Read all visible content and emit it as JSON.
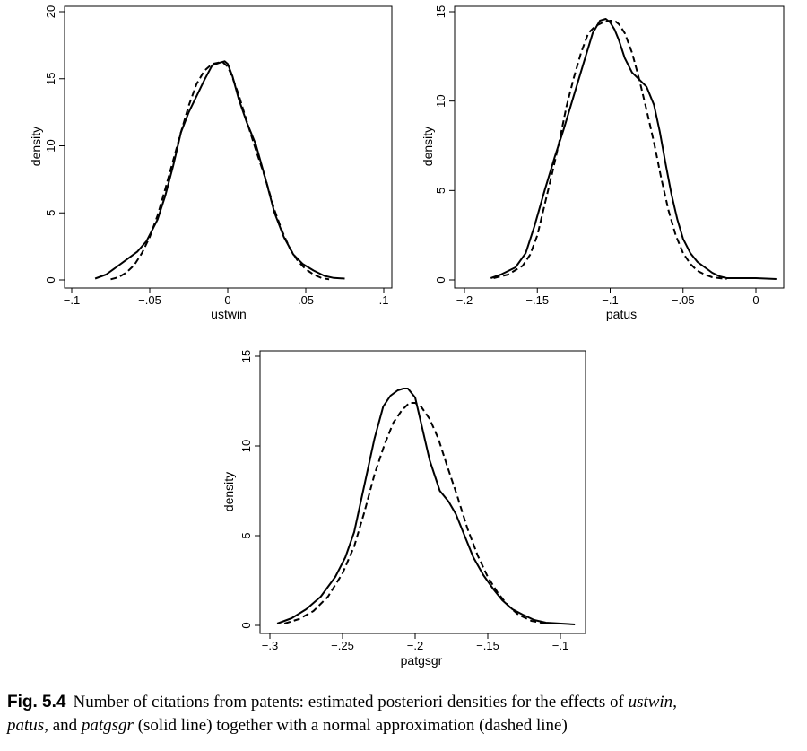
{
  "chart_data": [
    {
      "type": "line",
      "xlabel": "ustwin",
      "ylabel": "density",
      "xlim": [
        -0.1,
        0.1
      ],
      "ylim": [
        0,
        20
      ],
      "xticks": [
        -0.1,
        -0.05,
        0,
        0.05,
        0.1
      ],
      "xtick_labels": [
        "−.1",
        "−.05",
        "0",
        ".05",
        ".1"
      ],
      "yticks": [
        0,
        5,
        10,
        15,
        20
      ],
      "ytick_labels": [
        "0",
        "5",
        "10",
        "15",
        "20"
      ],
      "grid": false,
      "series": [
        {
          "style": "solid",
          "x": [
            -0.085,
            -0.078,
            -0.072,
            -0.065,
            -0.058,
            -0.052,
            -0.045,
            -0.04,
            -0.035,
            -0.03,
            -0.025,
            -0.02,
            -0.015,
            -0.01,
            -0.005,
            -0.002,
            0.0,
            0.003,
            0.007,
            0.012,
            0.018,
            0.024,
            0.03,
            0.036,
            0.042,
            0.048,
            0.055,
            0.062,
            0.068,
            0.075
          ],
          "y": [
            0.1,
            0.4,
            0.9,
            1.5,
            2.1,
            2.9,
            4.5,
            6.3,
            8.5,
            11.0,
            12.5,
            13.7,
            14.9,
            16.0,
            16.2,
            16.3,
            16.1,
            15.2,
            13.5,
            11.8,
            10.1,
            7.6,
            5.0,
            3.2,
            1.9,
            1.2,
            0.7,
            0.3,
            0.15,
            0.1
          ]
        },
        {
          "style": "dashed",
          "x": [
            -0.075,
            -0.07,
            -0.065,
            -0.06,
            -0.055,
            -0.05,
            -0.045,
            -0.04,
            -0.035,
            -0.03,
            -0.025,
            -0.02,
            -0.015,
            -0.01,
            -0.006,
            -0.003,
            0.0,
            0.003,
            0.007,
            0.012,
            0.018,
            0.024,
            0.03,
            0.035,
            0.04,
            0.045,
            0.05,
            0.055,
            0.06,
            0.065
          ],
          "y": [
            0.05,
            0.2,
            0.55,
            1.1,
            2.0,
            3.2,
            4.8,
            6.8,
            8.9,
            11.0,
            13.0,
            14.6,
            15.6,
            16.1,
            16.2,
            16.2,
            15.9,
            15.1,
            13.8,
            11.9,
            9.7,
            7.6,
            5.2,
            3.6,
            2.3,
            1.4,
            0.8,
            0.4,
            0.15,
            0.05
          ]
        }
      ]
    },
    {
      "type": "line",
      "xlabel": "patus",
      "ylabel": "density",
      "xlim": [
        -0.2,
        0.0
      ],
      "ylim": [
        0,
        15
      ],
      "xticks": [
        -0.2,
        -0.15,
        -0.1,
        -0.05,
        0
      ],
      "xtick_labels": [
        "−.2",
        "−.15",
        "−.1",
        "−.05",
        "0"
      ],
      "yticks": [
        0,
        5,
        10,
        15
      ],
      "ytick_labels": [
        "0",
        "5",
        "10",
        "15"
      ],
      "grid": false,
      "series": [
        {
          "style": "solid",
          "x": [
            -0.182,
            -0.175,
            -0.165,
            -0.158,
            -0.152,
            -0.145,
            -0.138,
            -0.132,
            -0.125,
            -0.118,
            -0.112,
            -0.107,
            -0.103,
            -0.1,
            -0.097,
            -0.094,
            -0.09,
            -0.085,
            -0.08,
            -0.075,
            -0.07,
            -0.066,
            -0.062,
            -0.058,
            -0.054,
            -0.05,
            -0.045,
            -0.04,
            -0.035,
            -0.03,
            -0.025,
            -0.02,
            -0.015,
            -0.01,
            -0.005,
            0.0,
            0.014
          ],
          "y": [
            0.1,
            0.3,
            0.7,
            1.5,
            3.0,
            5.0,
            6.9,
            8.4,
            10.3,
            12.2,
            13.8,
            14.5,
            14.6,
            14.4,
            14.0,
            13.4,
            12.4,
            11.6,
            11.2,
            10.8,
            9.8,
            8.3,
            6.5,
            4.8,
            3.4,
            2.3,
            1.5,
            1.0,
            0.7,
            0.4,
            0.2,
            0.1,
            0.1,
            0.1,
            0.1,
            0.1,
            0.05
          ]
        },
        {
          "style": "dashed",
          "x": [
            -0.18,
            -0.17,
            -0.16,
            -0.155,
            -0.15,
            -0.145,
            -0.14,
            -0.135,
            -0.13,
            -0.125,
            -0.12,
            -0.115,
            -0.11,
            -0.105,
            -0.1,
            -0.097,
            -0.094,
            -0.09,
            -0.085,
            -0.08,
            -0.075,
            -0.07,
            -0.065,
            -0.06,
            -0.055,
            -0.05,
            -0.045,
            -0.04,
            -0.035,
            -0.03,
            -0.025,
            -0.02
          ],
          "y": [
            0.1,
            0.3,
            0.8,
            1.4,
            2.5,
            4.2,
            5.9,
            7.7,
            9.7,
            11.3,
            12.7,
            13.8,
            14.2,
            14.4,
            14.5,
            14.5,
            14.3,
            13.8,
            12.7,
            11.2,
            9.5,
            7.7,
            5.7,
            3.9,
            2.5,
            1.5,
            0.9,
            0.5,
            0.3,
            0.15,
            0.1,
            0.05
          ]
        }
      ]
    },
    {
      "type": "line",
      "xlabel": "patgsgr",
      "ylabel": "density",
      "xlim": [
        -0.3,
        -0.1
      ],
      "ylim": [
        0,
        15
      ],
      "xticks": [
        -0.3,
        -0.25,
        -0.2,
        -0.15,
        -0.1
      ],
      "xtick_labels": [
        "−.3",
        "−.25",
        "−.2",
        "−.15",
        "−.1"
      ],
      "yticks": [
        0,
        5,
        10,
        15
      ],
      "ytick_labels": [
        "0",
        "5",
        "10",
        "15"
      ],
      "grid": false,
      "series": [
        {
          "style": "solid",
          "x": [
            -0.295,
            -0.285,
            -0.275,
            -0.265,
            -0.255,
            -0.248,
            -0.242,
            -0.235,
            -0.228,
            -0.222,
            -0.217,
            -0.212,
            -0.208,
            -0.205,
            -0.2,
            -0.196,
            -0.19,
            -0.183,
            -0.177,
            -0.172,
            -0.166,
            -0.16,
            -0.153,
            -0.146,
            -0.14,
            -0.133,
            -0.126,
            -0.118,
            -0.11,
            -0.09
          ],
          "y": [
            0.1,
            0.4,
            0.9,
            1.6,
            2.7,
            3.8,
            5.2,
            7.8,
            10.4,
            12.2,
            12.8,
            13.1,
            13.2,
            13.2,
            12.7,
            11.3,
            9.2,
            7.5,
            6.9,
            6.2,
            5.0,
            3.8,
            2.8,
            2.0,
            1.4,
            0.9,
            0.6,
            0.3,
            0.15,
            0.05
          ]
        },
        {
          "style": "dashed",
          "x": [
            -0.29,
            -0.28,
            -0.27,
            -0.26,
            -0.25,
            -0.242,
            -0.235,
            -0.228,
            -0.221,
            -0.215,
            -0.209,
            -0.204,
            -0.2,
            -0.196,
            -0.19,
            -0.184,
            -0.178,
            -0.171,
            -0.164,
            -0.157,
            -0.15,
            -0.143,
            -0.136,
            -0.129,
            -0.12,
            -0.11
          ],
          "y": [
            0.1,
            0.35,
            0.8,
            1.6,
            2.9,
            4.4,
            6.3,
            8.4,
            10.1,
            11.3,
            12.0,
            12.4,
            12.4,
            12.2,
            11.5,
            10.4,
            8.9,
            7.2,
            5.4,
            3.9,
            2.7,
            1.8,
            1.1,
            0.6,
            0.25,
            0.1
          ]
        }
      ]
    }
  ],
  "caption": {
    "label": "Fig. 5.4",
    "p1": "Number of citations from patents: estimated posteriori densities for the effects of ",
    "v1": "ustwin",
    "sep": ",",
    "v2": "patus",
    "p2": ", and ",
    "v3": "patgsgr",
    "p3": " (solid line) together with a normal approximation (dashed line)"
  }
}
